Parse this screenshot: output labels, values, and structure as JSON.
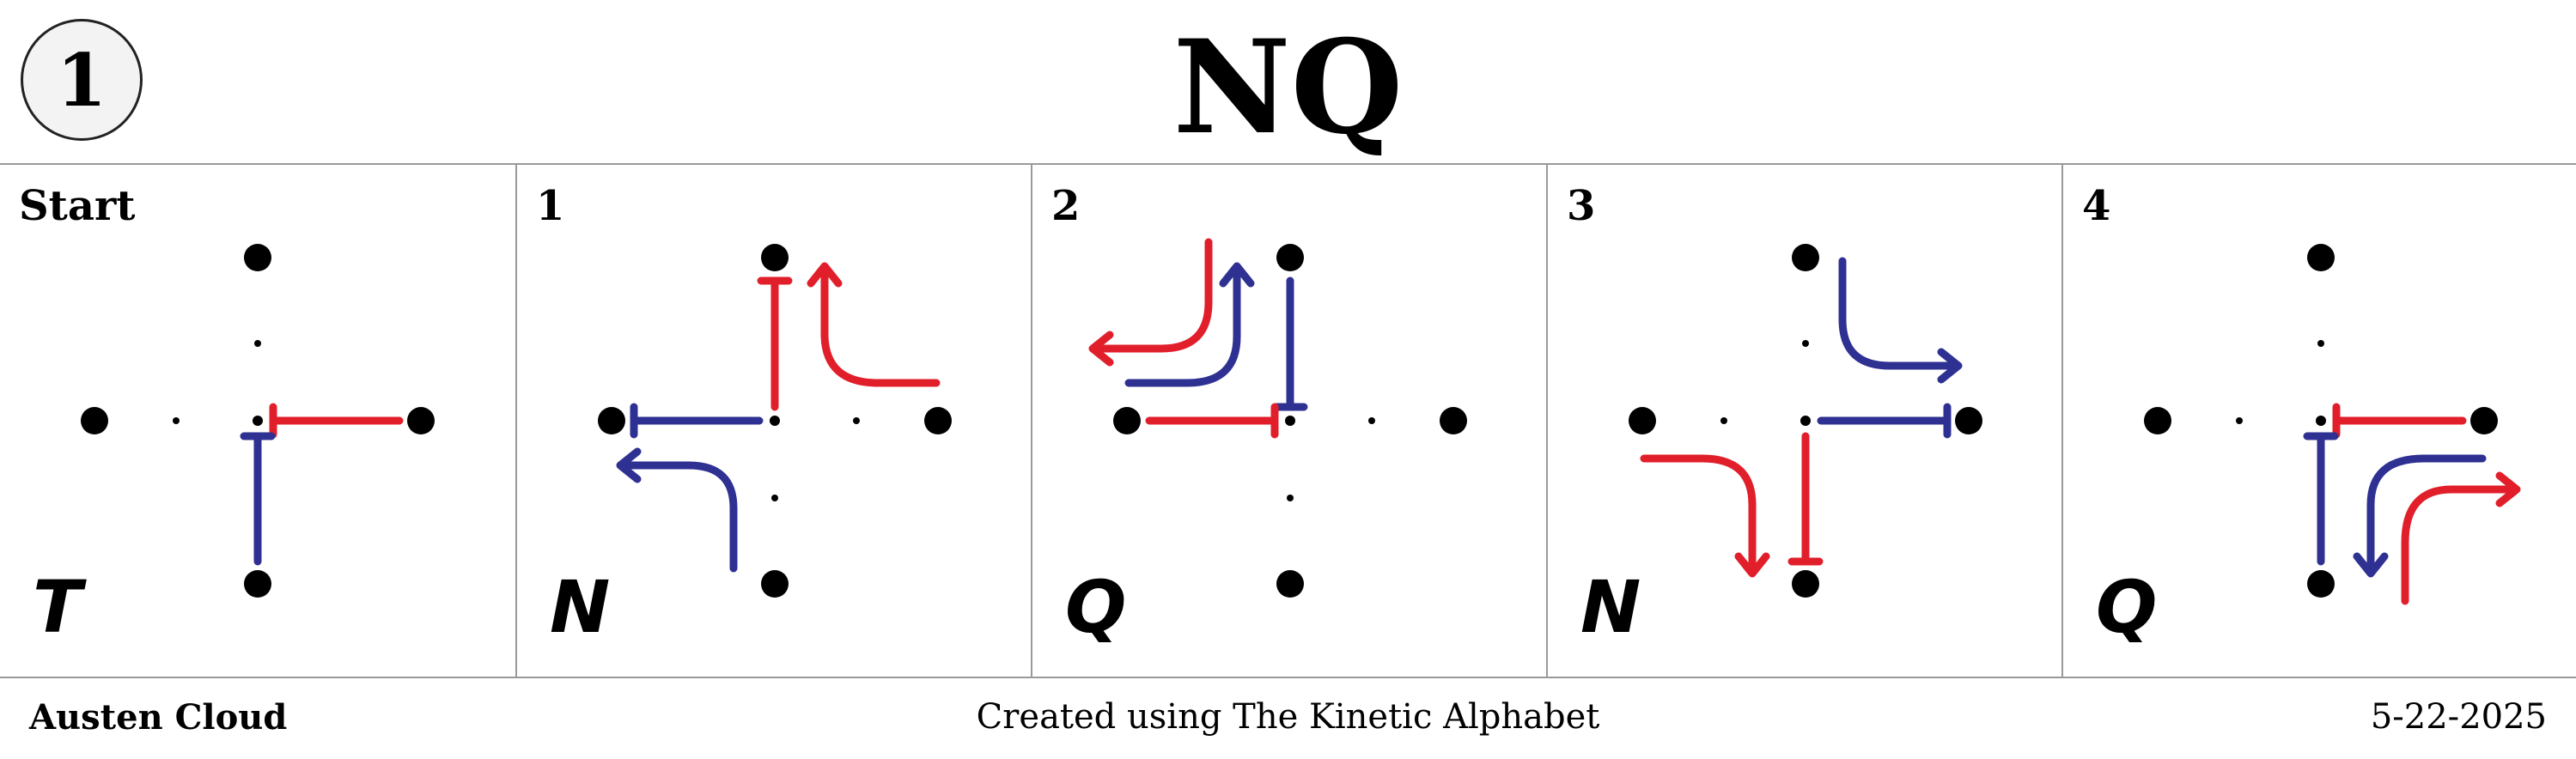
{
  "badge": {
    "number": "1"
  },
  "title": "NQ",
  "colors": {
    "red": "#e11f2b",
    "blue": "#2e3192",
    "dot": "#000000"
  },
  "panels": [
    {
      "label": "Start",
      "glyph": "T",
      "moves": [
        {
          "color": "red",
          "kind": "bar-to-east"
        },
        {
          "color": "blue",
          "kind": "bar-to-south"
        }
      ]
    },
    {
      "label": "1",
      "glyph": "N",
      "moves": [
        {
          "color": "red",
          "kind": "bar-to-north"
        },
        {
          "color": "red",
          "kind": "turn-arrow"
        },
        {
          "color": "blue",
          "kind": "bar-to-west"
        },
        {
          "color": "blue",
          "kind": "turn-arrow"
        }
      ]
    },
    {
      "label": "2",
      "glyph": "Q",
      "moves": [
        {
          "color": "red",
          "kind": "turn-arrow"
        },
        {
          "color": "blue",
          "kind": "turn-arrow"
        },
        {
          "color": "blue",
          "kind": "bar-to-north"
        },
        {
          "color": "red",
          "kind": "bar-to-west"
        }
      ]
    },
    {
      "label": "3",
      "glyph": "N",
      "moves": [
        {
          "color": "blue",
          "kind": "turn-arrow"
        },
        {
          "color": "blue",
          "kind": "bar-to-east"
        },
        {
          "color": "red",
          "kind": "turn-arrow"
        },
        {
          "color": "red",
          "kind": "bar-to-south"
        }
      ]
    },
    {
      "label": "4",
      "glyph": "Q",
      "moves": [
        {
          "color": "red",
          "kind": "bar-to-east"
        },
        {
          "color": "blue",
          "kind": "bar-to-south"
        },
        {
          "color": "blue",
          "kind": "turn-arrow"
        },
        {
          "color": "red",
          "kind": "turn-arrow"
        }
      ]
    }
  ],
  "footer": {
    "author": "Austen Cloud",
    "credit": "Created using The Kinetic Alphabet",
    "date": "5-22-2025"
  }
}
